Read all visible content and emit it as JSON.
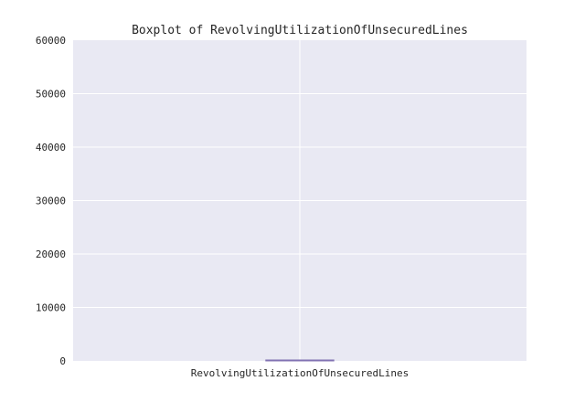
{
  "chart_data": {
    "type": "box",
    "title": "Boxplot of RevolvingUtilizationOfUnsecuredLines",
    "xlabel": "",
    "ylabel": "",
    "categories": [
      "RevolvingUtilizationOfUnsecuredLines"
    ],
    "ylim": [
      0,
      60000
    ],
    "yticks": [
      0,
      10000,
      20000,
      30000,
      40000,
      50000,
      60000
    ],
    "ytick_labels": [
      "0",
      "10000",
      "20000",
      "30000",
      "40000",
      "50000",
      "60000"
    ],
    "grid": true,
    "boxes": [
      {
        "category": "RevolvingUtilizationOfUnsecuredLines",
        "min": 0,
        "q1": 0.03,
        "median": 0.15,
        "q3": 0.56,
        "max": 1.35
      }
    ],
    "colors": {
      "plot_background": "#e9e9f3",
      "grid": "#ffffff",
      "box": "#8172b2",
      "text": "#262626"
    }
  }
}
